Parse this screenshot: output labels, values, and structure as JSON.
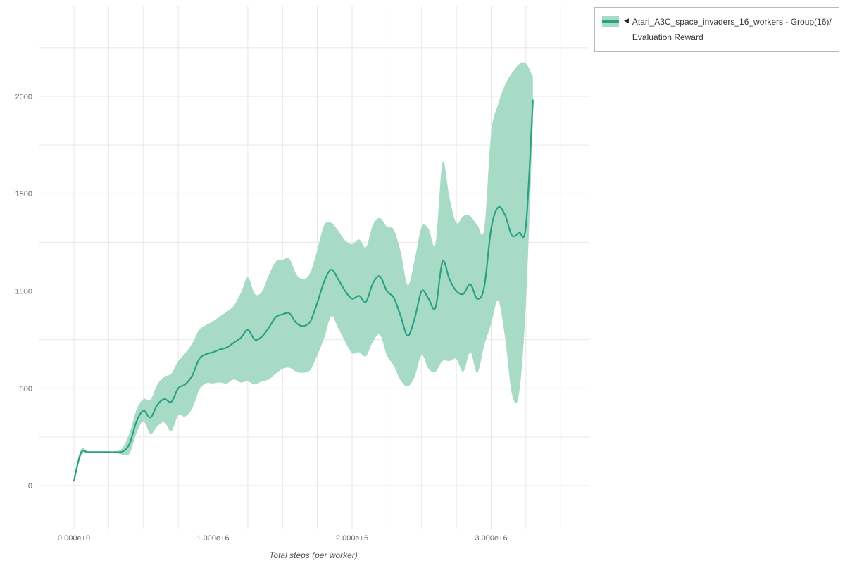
{
  "figure": {
    "xlabel": "Total steps (per worker)",
    "x_ticks": [
      "0.000e+0",
      "1.000e+6",
      "2.000e+6",
      "3.000e+6"
    ],
    "y_ticks": [
      "0",
      "500",
      "1000",
      "1500",
      "2000"
    ]
  },
  "legend": {
    "marker": "◀",
    "label_line1": "Atari_A3C_space_invaders_16_workers - Group(16)/",
    "label_line2": "Evaluation Reward"
  },
  "colors": {
    "line": "#2aa186",
    "band": "#a8dbc6",
    "grid": "#e7e7e7",
    "tick_text": "#666666"
  },
  "chart_data": {
    "type": "line",
    "title": "",
    "xlabel": "Total steps (per worker)",
    "ylabel": "",
    "xlim": [
      0,
      3700000
    ],
    "ylim": [
      -250,
      2460
    ],
    "grid": true,
    "legend_position": "top-right",
    "x_unit_scale": 1000000,
    "series": [
      {
        "name": "Atari_A3C_space_invaders_16_workers - Group(16)/Evaluation Reward",
        "x_millions": [
          0,
          0.05,
          0.1,
          0.15,
          0.2,
          0.25,
          0.3,
          0.35,
          0.4,
          0.45,
          0.5,
          0.55,
          0.6,
          0.65,
          0.7,
          0.75,
          0.8,
          0.85,
          0.9,
          0.95,
          1.0,
          1.05,
          1.1,
          1.15,
          1.2,
          1.25,
          1.3,
          1.35,
          1.4,
          1.45,
          1.5,
          1.55,
          1.6,
          1.65,
          1.7,
          1.75,
          1.8,
          1.85,
          1.9,
          1.95,
          2.0,
          2.05,
          2.1,
          2.15,
          2.2,
          2.25,
          2.3,
          2.35,
          2.4,
          2.45,
          2.5,
          2.55,
          2.6,
          2.65,
          2.7,
          2.75,
          2.8,
          2.85,
          2.9,
          2.95,
          3.0,
          3.05,
          3.1,
          3.15,
          3.2,
          3.25,
          3.3
        ],
        "mean": [
          25,
          168,
          172,
          172,
          172,
          172,
          172,
          175,
          215,
          330,
          385,
          350,
          415,
          445,
          430,
          500,
          520,
          565,
          650,
          675,
          685,
          700,
          710,
          735,
          760,
          800,
          750,
          765,
          810,
          865,
          880,
          885,
          835,
          820,
          845,
          940,
          1050,
          1110,
          1060,
          1000,
          960,
          975,
          945,
          1040,
          1075,
          1000,
          965,
          870,
          770,
          860,
          1000,
          960,
          915,
          1150,
          1060,
          1000,
          985,
          1035,
          960,
          1020,
          1320,
          1430,
          1390,
          1285,
          1300,
          1335,
          1980
        ],
        "lower": [
          10,
          150,
          168,
          168,
          168,
          168,
          168,
          160,
          165,
          270,
          330,
          265,
          305,
          325,
          280,
          360,
          355,
          395,
          490,
          525,
          525,
          530,
          525,
          545,
          530,
          535,
          520,
          535,
          545,
          575,
          600,
          605,
          585,
          580,
          595,
          670,
          760,
          870,
          810,
          740,
          680,
          685,
          665,
          740,
          775,
          670,
          615,
          540,
          510,
          560,
          670,
          600,
          585,
          640,
          640,
          650,
          585,
          685,
          580,
          720,
          830,
          950,
          760,
          470,
          470,
          940,
          1860
        ],
        "upper": [
          40,
          185,
          176,
          176,
          176,
          176,
          176,
          195,
          270,
          390,
          445,
          440,
          520,
          560,
          575,
          640,
          680,
          730,
          800,
          825,
          845,
          870,
          895,
          925,
          990,
          1070,
          985,
          995,
          1080,
          1150,
          1160,
          1165,
          1085,
          1060,
          1095,
          1210,
          1340,
          1350,
          1310,
          1260,
          1240,
          1265,
          1225,
          1340,
          1375,
          1330,
          1315,
          1200,
          1030,
          1160,
          1330,
          1320,
          1245,
          1660,
          1480,
          1350,
          1385,
          1385,
          1340,
          1320,
          1810,
          1960,
          2060,
          2120,
          2165,
          2170,
          2100
        ]
      }
    ]
  }
}
